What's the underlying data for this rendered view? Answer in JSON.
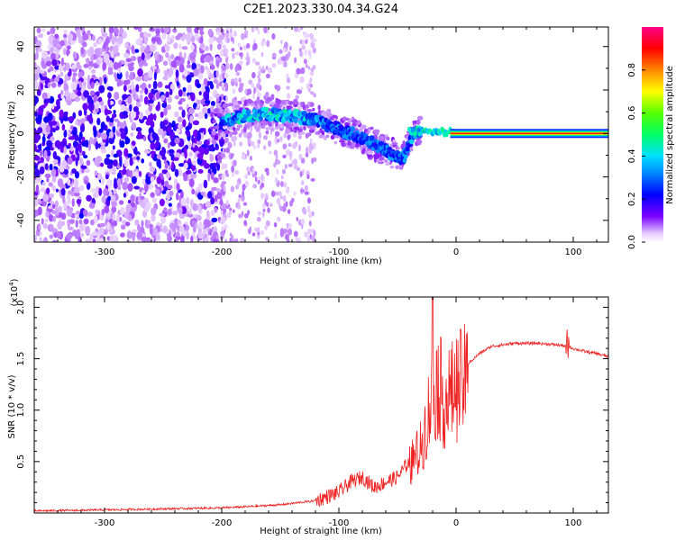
{
  "title": "C2E1.2023.330.04.34.G24",
  "colors": {
    "snr_line": "#ee2222",
    "background": "#ffffff",
    "frame": "#000000"
  },
  "chart_data": [
    {
      "type": "heatmap",
      "title": "C2E1.2023.330.04.34.G24",
      "xlabel": "Height of straight line (km)",
      "ylabel": "Frequency (Hz)",
      "xlim": [
        -360,
        130
      ],
      "ylim": [
        -50,
        49
      ],
      "x_ticks": [
        -300,
        -200,
        -100,
        0,
        100
      ],
      "y_ticks": [
        -40,
        -20,
        0,
        20,
        40
      ],
      "grid": false,
      "colorbar": {
        "label": "Normalized spectral amplitude",
        "range": [
          0,
          1
        ],
        "ticks": [
          0.0,
          0.2,
          0.4,
          0.6,
          0.8
        ],
        "colormap": "rainbow"
      },
      "ridge": {
        "description_points_height_km": [
          -200,
          -180,
          -160,
          -140,
          -120,
          -100,
          -80,
          -60,
          -45,
          -35,
          -20,
          0,
          50,
          100,
          130
        ],
        "frequency_hz": [
          6,
          8,
          9,
          8,
          6,
          2,
          -2,
          -8,
          -12,
          1,
          1,
          0,
          0,
          0,
          0
        ],
        "amplitude": [
          0.35,
          0.4,
          0.4,
          0.4,
          0.35,
          0.3,
          0.3,
          0.3,
          0.3,
          0.35,
          0.4,
          0.7,
          0.85,
          0.85,
          0.85
        ]
      }
    },
    {
      "type": "line",
      "xlabel": "Height of straight line (km)",
      "ylabel": "SNR (10 * v/v)",
      "y_multiplier_label": "(x10",
      "y_multiplier_exp": "4",
      "y_multiplier_close": ")",
      "xlim": [
        -360,
        130
      ],
      "ylim": [
        0,
        2.1
      ],
      "x_ticks": [
        -300,
        -200,
        -100,
        0,
        100
      ],
      "y_ticks": [
        0.5,
        1.0,
        1.5,
        2.0
      ],
      "y_tick_labels": [
        "0.5",
        "1.0",
        "1.5",
        "2.0"
      ],
      "grid": false,
      "series": [
        {
          "x": [
            -360,
            -300,
            -250,
            -200,
            -180,
            -150,
            -120,
            -100,
            -90,
            -80,
            -70,
            -60,
            -50,
            -40,
            -30,
            -25,
            -20,
            -15,
            -10,
            0,
            10,
            20,
            30,
            50,
            70,
            90,
            95,
            100,
            110,
            120,
            130
          ],
          "y": [
            0.02,
            0.03,
            0.04,
            0.05,
            0.06,
            0.08,
            0.12,
            0.2,
            0.3,
            0.35,
            0.25,
            0.3,
            0.35,
            0.5,
            0.7,
            1.0,
            1.3,
            1.4,
            1.2,
            1.35,
            1.45,
            1.55,
            1.62,
            1.65,
            1.65,
            1.63,
            1.62,
            1.6,
            1.57,
            1.55,
            1.52
          ]
        }
      ]
    }
  ]
}
